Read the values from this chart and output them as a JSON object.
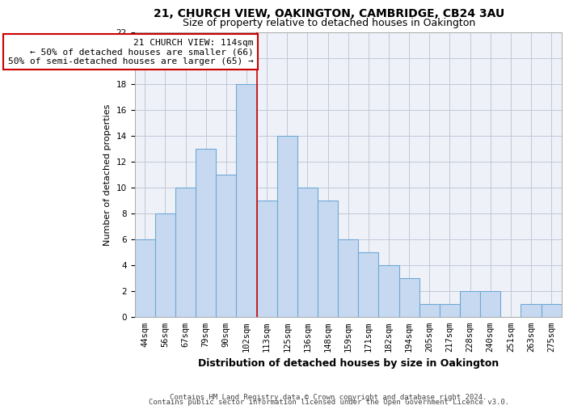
{
  "title": "21, CHURCH VIEW, OAKINGTON, CAMBRIDGE, CB24 3AU",
  "subtitle": "Size of property relative to detached houses in Oakington",
  "xlabel": "Distribution of detached houses by size in Oakington",
  "ylabel": "Number of detached properties",
  "categories": [
    "44sqm",
    "56sqm",
    "67sqm",
    "79sqm",
    "90sqm",
    "102sqm",
    "113sqm",
    "125sqm",
    "136sqm",
    "148sqm",
    "159sqm",
    "171sqm",
    "182sqm",
    "194sqm",
    "205sqm",
    "217sqm",
    "228sqm",
    "240sqm",
    "251sqm",
    "263sqm",
    "275sqm"
  ],
  "values": [
    6,
    8,
    10,
    13,
    11,
    18,
    9,
    14,
    10,
    9,
    6,
    5,
    4,
    3,
    1,
    1,
    2,
    2,
    0,
    1,
    1
  ],
  "bar_color": "#c7d9f0",
  "bar_edge_color": "#6fa8d6",
  "grid_color": "#c0c8d8",
  "background_color": "#eef2f8",
  "subject_line_index": 6,
  "annotation_text": "21 CHURCH VIEW: 114sqm\n← 50% of detached houses are smaller (66)\n50% of semi-detached houses are larger (65) →",
  "annotation_box_color": "#ffffff",
  "annotation_box_edge": "#cc0000",
  "subject_line_color": "#cc0000",
  "ylim": [
    0,
    22
  ],
  "yticks": [
    0,
    2,
    4,
    6,
    8,
    10,
    12,
    14,
    16,
    18,
    20,
    22
  ],
  "footer_line1": "Contains HM Land Registry data © Crown copyright and database right 2024.",
  "footer_line2": "Contains public sector information licensed under the Open Government Licence v3.0.",
  "title_fontsize": 10,
  "subtitle_fontsize": 9,
  "ylabel_fontsize": 8,
  "xlabel_fontsize": 9,
  "tick_fontsize": 7.5,
  "annotation_fontsize": 8,
  "footer_fontsize": 6.5
}
